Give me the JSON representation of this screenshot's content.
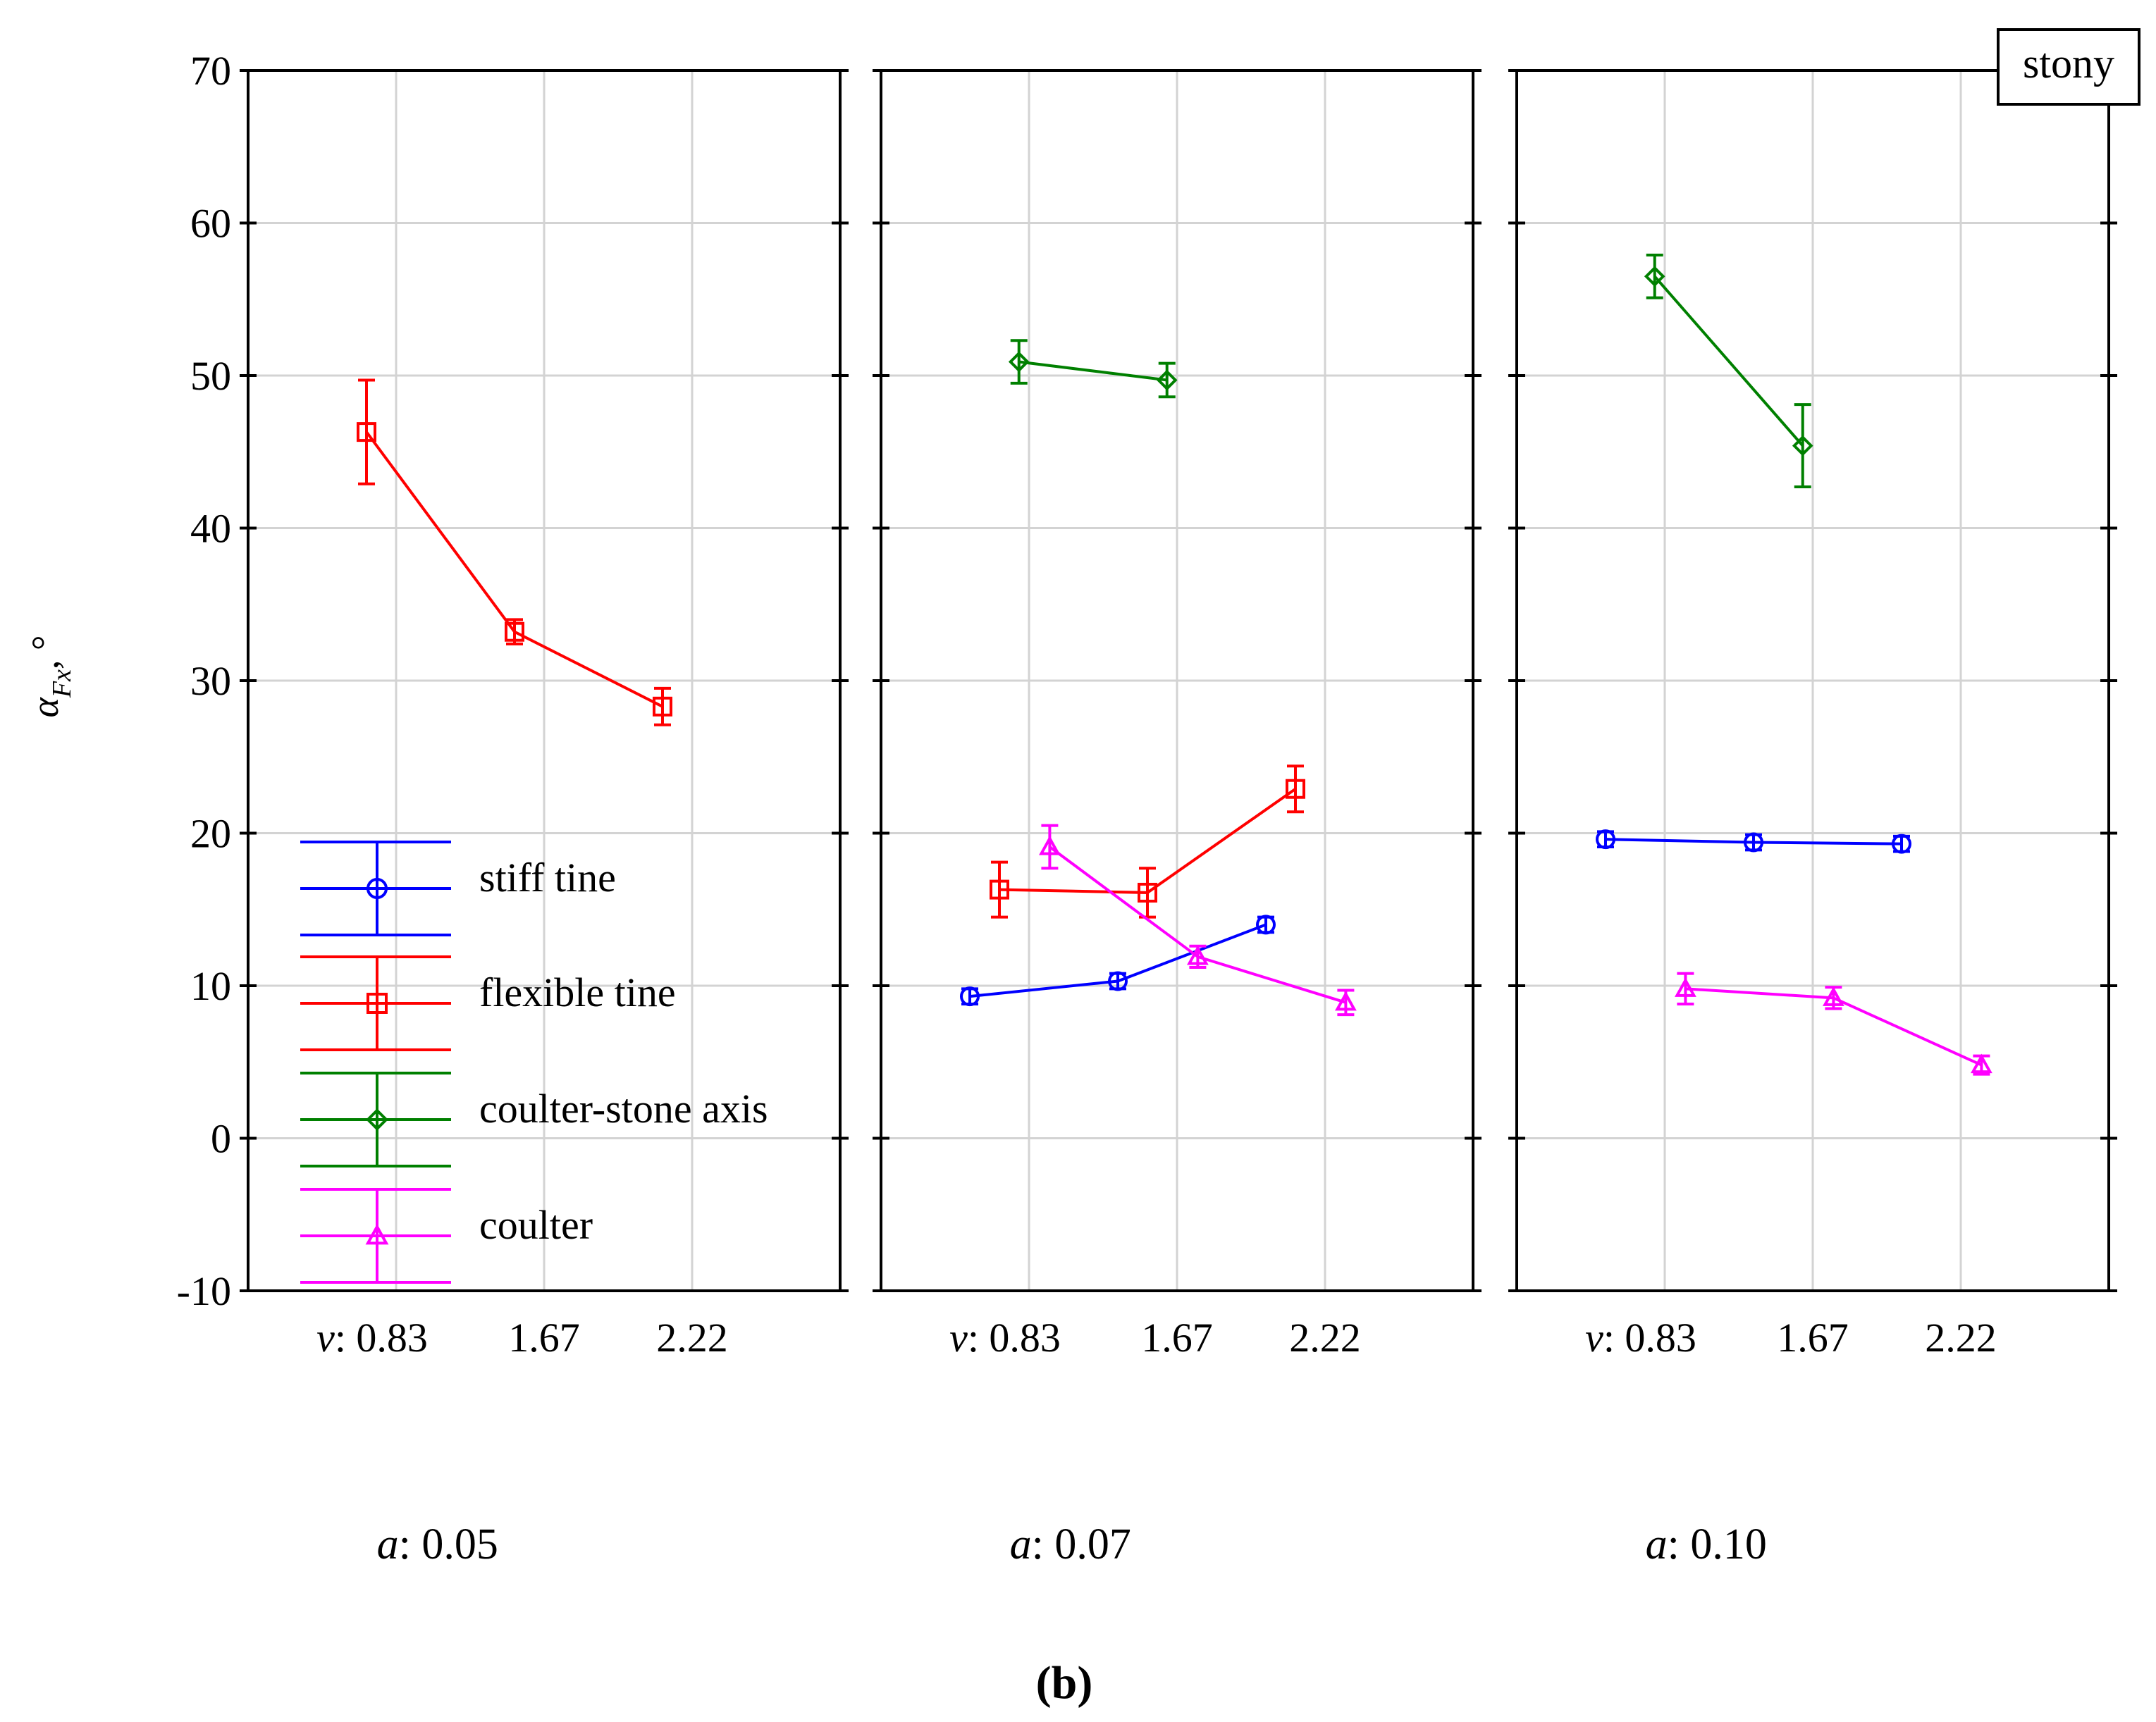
{
  "figure_label": "(b)",
  "box_label": "stony",
  "colors": {
    "stiff_tine": "#0000ff",
    "flexible_tine": "#ff0000",
    "coulter_stone_axis": "#008000",
    "coulter": "#ff00ff",
    "grid": "#d3d3d3",
    "axis": "#000000"
  },
  "chart_data": {
    "type": "line",
    "title": "",
    "ylabel_symbol": "α",
    "ylabel_subscript": "Fx",
    "ylabel_unit": ", °",
    "ylim": [
      -10,
      70
    ],
    "yticks": [
      -10,
      0,
      10,
      20,
      30,
      40,
      50,
      60,
      70
    ],
    "ytick_labels": [
      "-10",
      "0",
      "10",
      "20",
      "30",
      "40",
      "50",
      "60",
      "70"
    ],
    "x_var": "v",
    "x_categories": [
      "0.83",
      "1.67",
      "2.22"
    ],
    "panel_var": "a",
    "legend": [
      {
        "name": "stiff tine",
        "marker": "circle",
        "color_key": "stiff_tine"
      },
      {
        "name": "flexible tine",
        "marker": "square",
        "color_key": "flexible_tine"
      },
      {
        "name": "coulter-stone axis",
        "marker": "diamond",
        "color_key": "coulter_stone_axis"
      },
      {
        "name": "coulter",
        "marker": "triangle",
        "color_key": "coulter"
      }
    ],
    "panels": [
      {
        "a": "0.05",
        "series": [
          {
            "name": "flexible tine",
            "values": [
              46.3,
              33.2,
              28.3
            ],
            "err": [
              3.4,
              0.8,
              1.2
            ]
          }
        ]
      },
      {
        "a": "0.07",
        "series": [
          {
            "name": "stiff tine",
            "values": [
              9.3,
              10.3,
              14.0
            ],
            "err": [
              0.5,
              0.5,
              0.5
            ]
          },
          {
            "name": "flexible tine",
            "values": [
              16.3,
              16.1,
              22.9
            ],
            "err": [
              1.8,
              1.6,
              1.5
            ]
          },
          {
            "name": "coulter-stone axis",
            "values": [
              50.9,
              49.7,
              null
            ],
            "err": [
              1.4,
              1.1,
              0
            ]
          },
          {
            "name": "coulter",
            "values": [
              19.1,
              11.9,
              8.9
            ],
            "err": [
              1.4,
              0.7,
              0.8
            ]
          }
        ]
      },
      {
        "a": "0.10",
        "series": [
          {
            "name": "stiff tine",
            "values": [
              19.6,
              19.4,
              19.3
            ],
            "err": [
              0.5,
              0.5,
              0.5
            ]
          },
          {
            "name": "coulter-stone axis",
            "values": [
              56.5,
              45.4,
              null
            ],
            "err": [
              1.4,
              2.7,
              0
            ]
          },
          {
            "name": "coulter",
            "values": [
              9.8,
              9.2,
              4.8
            ],
            "err": [
              1.0,
              0.7,
              0.6
            ]
          }
        ]
      }
    ]
  }
}
